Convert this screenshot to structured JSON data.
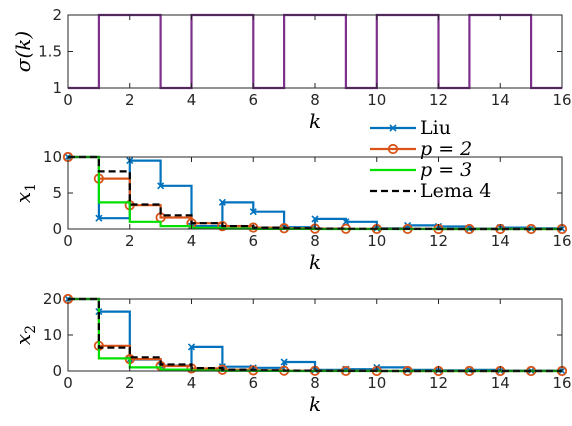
{
  "chart_data": [
    {
      "type": "line",
      "step": true,
      "ylabel": "σ(k)",
      "xlabel": "k",
      "xlim": [
        0,
        16
      ],
      "ylim": [
        1,
        2
      ],
      "xticks": [
        "0",
        "2",
        "4",
        "6",
        "8",
        "10",
        "12",
        "14",
        "16"
      ],
      "yticks": [
        "1",
        "1.5",
        "2"
      ],
      "series": [
        {
          "color": "#7E2F8E",
          "x": [
            0,
            1,
            1,
            3,
            3,
            4,
            4,
            6,
            6,
            7,
            7,
            9,
            9,
            10,
            10,
            12,
            12,
            13,
            13,
            15,
            15,
            16
          ],
          "y": [
            1,
            1,
            2,
            2,
            1,
            1,
            2,
            2,
            1,
            1,
            2,
            2,
            1,
            1,
            2,
            2,
            1,
            1,
            2,
            2,
            1,
            1
          ]
        }
      ]
    },
    {
      "type": "line",
      "step": true,
      "ylabel": "x1",
      "xlabel": "k",
      "xlim": [
        0,
        16
      ],
      "ylim": [
        0,
        10
      ],
      "xticks": [
        "0",
        "2",
        "4",
        "6",
        "8",
        "10",
        "12",
        "14",
        "16"
      ],
      "yticks": [
        "0",
        "5",
        "10"
      ],
      "legend": [
        "Liu",
        "p = 2",
        "p = 3",
        "Lema 4"
      ],
      "legend_position": "top-right",
      "series": [
        {
          "name": "Liu",
          "color": "#0072BD",
          "marker": "x",
          "dash": "solid",
          "x": [
            0,
            1,
            2,
            3,
            4,
            5,
            6,
            7,
            8,
            9,
            10,
            11,
            12,
            13,
            14,
            15,
            16
          ],
          "y": [
            10,
            1.5,
            9.5,
            6.0,
            0.4,
            3.7,
            2.4,
            0.25,
            1.4,
            1.0,
            0.1,
            0.5,
            0.35,
            0.05,
            0.2,
            0.1,
            0.05
          ]
        },
        {
          "name": "p = 2",
          "color": "#D95319",
          "marker": "o",
          "dash": "solid",
          "x": [
            0,
            1,
            2,
            3,
            4,
            5,
            6,
            7,
            8,
            9,
            10,
            11,
            12,
            13,
            14,
            15,
            16
          ],
          "y": [
            10,
            7.0,
            3.3,
            1.6,
            0.8,
            0.4,
            0.2,
            0.1,
            0.05,
            0.03,
            0.01,
            0.01,
            0,
            0,
            0,
            0,
            0
          ]
        },
        {
          "name": "p = 3",
          "color": "#00E000",
          "marker": "none",
          "dash": "solid",
          "x": [
            0,
            1,
            2,
            3,
            4,
            5,
            6,
            7,
            8,
            9,
            10,
            11,
            12,
            13,
            14,
            15,
            16
          ],
          "y": [
            10,
            3.7,
            1.0,
            0.4,
            0.15,
            0.06,
            0.02,
            0.01,
            0,
            0,
            0,
            0,
            0,
            0,
            0,
            0,
            0
          ]
        },
        {
          "name": "Lema 4",
          "color": "#000000",
          "marker": "none",
          "dash": "dashed",
          "x": [
            0,
            1,
            2,
            3,
            4,
            5,
            6,
            7,
            8,
            9,
            10,
            11,
            12,
            13,
            14,
            15,
            16
          ],
          "y": [
            10,
            8.0,
            3.4,
            1.9,
            0.8,
            0.4,
            0.2,
            0.1,
            0.05,
            0.03,
            0.01,
            0.01,
            0,
            0,
            0,
            0,
            0
          ]
        }
      ]
    },
    {
      "type": "line",
      "step": true,
      "ylabel": "x2",
      "xlabel": "k",
      "xlim": [
        0,
        16
      ],
      "ylim": [
        0,
        20
      ],
      "xticks": [
        "0",
        "2",
        "4",
        "6",
        "8",
        "10",
        "12",
        "14",
        "16"
      ],
      "yticks": [
        "0",
        "10",
        "20"
      ],
      "series": [
        {
          "name": "Liu",
          "color": "#0072BD",
          "marker": "x",
          "dash": "solid",
          "x": [
            0,
            1,
            2,
            3,
            4,
            5,
            6,
            7,
            8,
            9,
            10,
            11,
            12,
            13,
            14,
            15,
            16
          ],
          "y": [
            20,
            16.5,
            3.2,
            1.5,
            6.7,
            1.2,
            0.9,
            2.5,
            0.3,
            0.5,
            1.0,
            0.3,
            0.2,
            0.3,
            0.1,
            0.1,
            0.05
          ]
        },
        {
          "name": "p = 2",
          "color": "#D95319",
          "marker": "o",
          "dash": "solid",
          "x": [
            0,
            1,
            2,
            3,
            4,
            5,
            6,
            7,
            8,
            9,
            10,
            11,
            12,
            13,
            14,
            15,
            16
          ],
          "y": [
            20,
            7.0,
            3.3,
            1.4,
            0.7,
            0.35,
            0.18,
            0.09,
            0.05,
            0.02,
            0.01,
            0,
            0,
            0,
            0,
            0,
            0
          ]
        },
        {
          "name": "p = 3",
          "color": "#00E000",
          "marker": "none",
          "dash": "solid",
          "x": [
            0,
            1,
            2,
            3,
            4,
            5,
            6,
            7,
            8,
            9,
            10,
            11,
            12,
            13,
            14,
            15,
            16
          ],
          "y": [
            20,
            3.5,
            1.0,
            0.4,
            0.15,
            0.05,
            0.02,
            0.01,
            0,
            0,
            0,
            0,
            0,
            0,
            0,
            0,
            0
          ]
        },
        {
          "name": "Lema 4",
          "color": "#000000",
          "marker": "none",
          "dash": "dashed",
          "x": [
            0,
            1,
            2,
            3,
            4,
            5,
            6,
            7,
            8,
            9,
            10,
            11,
            12,
            13,
            14,
            15,
            16
          ],
          "y": [
            20,
            6.5,
            3.8,
            1.8,
            0.8,
            0.4,
            0.2,
            0.1,
            0.05,
            0.02,
            0.01,
            0,
            0,
            0,
            0,
            0,
            0
          ]
        }
      ]
    }
  ]
}
